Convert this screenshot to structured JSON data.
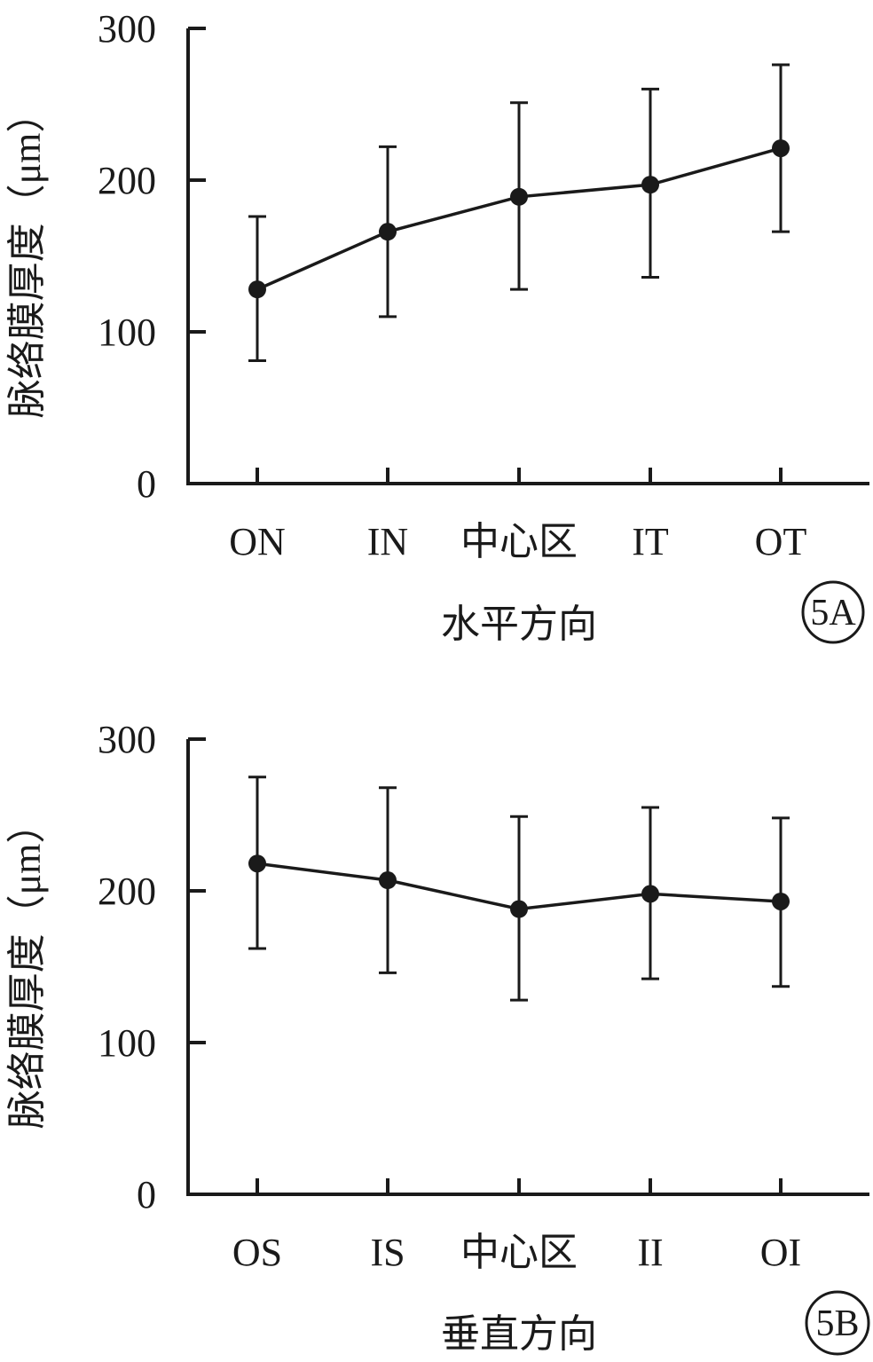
{
  "chart_data": [
    {
      "type": "line",
      "panel_label": "5A",
      "xlabel": "水平方向",
      "ylabel": "脉络膜厚度（μm）",
      "categories": [
        "ON",
        "IN",
        "中心区",
        "IT",
        "OT"
      ],
      "values": [
        128,
        166,
        189,
        197,
        221
      ],
      "error_low": [
        81,
        110,
        128,
        136,
        166
      ],
      "error_high": [
        176,
        222,
        251,
        260,
        276
      ],
      "ylim": [
        0,
        300
      ],
      "yticks": [
        "0",
        "100",
        "200",
        "300"
      ],
      "grid": false,
      "legend": "none"
    },
    {
      "type": "line",
      "panel_label": "5B",
      "xlabel": "垂直方向",
      "ylabel": "脉络膜厚度（μm）",
      "categories": [
        "OS",
        "IS",
        "中心区",
        "II",
        "OI"
      ],
      "values": [
        218,
        207,
        188,
        198,
        193
      ],
      "error_low": [
        162,
        146,
        128,
        142,
        137
      ],
      "error_high": [
        275,
        268,
        249,
        255,
        248
      ],
      "ylim": [
        0,
        300
      ],
      "yticks": [
        "0",
        "100",
        "200",
        "300"
      ],
      "grid": false,
      "legend": "none"
    }
  ]
}
